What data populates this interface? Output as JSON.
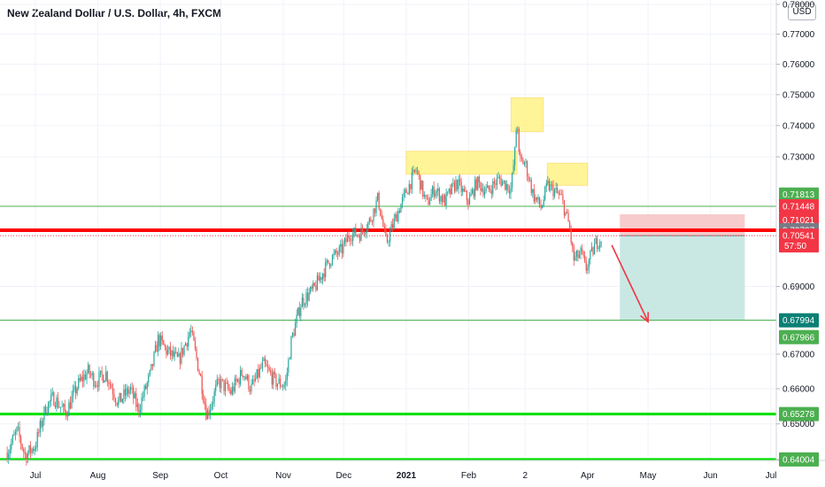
{
  "title": "New Zealand Dollar / U.S. Dollar, 4h, FXCM",
  "currency": "USD",
  "chart_data": {
    "type": "candlestick",
    "y_scale": "log",
    "ylim": [
      0.6375,
      0.7805
    ],
    "y_ticks": [
      "0.78000",
      "0.77000",
      "0.76000",
      "0.75000",
      "0.74000",
      "0.73000",
      "0.69000",
      "0.67000",
      "0.66000",
      "0.65000",
      "0.64000"
    ],
    "x_ticks": [
      {
        "label": "Jul",
        "date": "2020-07-01"
      },
      {
        "label": "Aug",
        "date": "2020-08-01"
      },
      {
        "label": "Sep",
        "date": "2020-09-01"
      },
      {
        "label": "Oct",
        "date": "2020-10-01"
      },
      {
        "label": "Nov",
        "date": "2020-11-01"
      },
      {
        "label": "Dec",
        "date": "2020-12-01"
      },
      {
        "label": "2021",
        "date": "2021-01-01",
        "bold": true
      },
      {
        "label": "Feb",
        "date": "2021-02-01"
      },
      {
        "label": "2",
        "date": "2021-03-01"
      },
      {
        "label": "Apr",
        "date": "2021-04-01"
      },
      {
        "label": "May",
        "date": "2021-05-01"
      },
      {
        "label": "Jun",
        "date": "2021-06-01"
      },
      {
        "label": "Jul",
        "date": "2021-07-01"
      }
    ],
    "price_path": [
      [
        "2020-06-17",
        0.642
      ],
      [
        "2020-06-22",
        0.648
      ],
      [
        "2020-06-26",
        0.641
      ],
      [
        "2020-07-01",
        0.644
      ],
      [
        "2020-07-06",
        0.6545
      ],
      [
        "2020-07-10",
        0.6575
      ],
      [
        "2020-07-16",
        0.653
      ],
      [
        "2020-07-22",
        0.661
      ],
      [
        "2020-07-27",
        0.665
      ],
      [
        "2020-07-31",
        0.662
      ],
      [
        "2020-08-05",
        0.6645
      ],
      [
        "2020-08-11",
        0.656
      ],
      [
        "2020-08-17",
        0.66
      ],
      [
        "2020-08-21",
        0.654
      ],
      [
        "2020-08-27",
        0.664
      ],
      [
        "2020-08-31",
        0.6745
      ],
      [
        "2020-09-04",
        0.671
      ],
      [
        "2020-09-10",
        0.668
      ],
      [
        "2020-09-16",
        0.677
      ],
      [
        "2020-09-21",
        0.663
      ],
      [
        "2020-09-24",
        0.6525
      ],
      [
        "2020-09-30",
        0.662
      ],
      [
        "2020-10-06",
        0.659
      ],
      [
        "2020-10-12",
        0.665
      ],
      [
        "2020-10-16",
        0.66
      ],
      [
        "2020-10-22",
        0.667
      ],
      [
        "2020-10-28",
        0.662
      ],
      [
        "2020-11-02",
        0.661
      ],
      [
        "2020-11-05",
        0.674
      ],
      [
        "2020-11-10",
        0.6855
      ],
      [
        "2020-11-16",
        0.689
      ],
      [
        "2020-11-24",
        0.698
      ],
      [
        "2020-11-30",
        0.701
      ],
      [
        "2020-12-04",
        0.706
      ],
      [
        "2020-12-09",
        0.706
      ],
      [
        "2020-12-14",
        0.71
      ],
      [
        "2020-12-18",
        0.717
      ],
      [
        "2020-12-22",
        0.703
      ],
      [
        "2020-12-28",
        0.713
      ],
      [
        "2021-01-01",
        0.719
      ],
      [
        "2021-01-06",
        0.726
      ],
      [
        "2021-01-11",
        0.715
      ],
      [
        "2021-01-15",
        0.72
      ],
      [
        "2021-01-20",
        0.716
      ],
      [
        "2021-01-26",
        0.722
      ],
      [
        "2021-02-01",
        0.716
      ],
      [
        "2021-02-05",
        0.722
      ],
      [
        "2021-02-10",
        0.719
      ],
      [
        "2021-02-16",
        0.723
      ],
      [
        "2021-02-22",
        0.72
      ],
      [
        "2021-02-24",
        0.732
      ],
      [
        "2021-02-25",
        0.744
      ],
      [
        "2021-02-26",
        0.729
      ],
      [
        "2021-03-01",
        0.728
      ],
      [
        "2021-03-05",
        0.718
      ],
      [
        "2021-03-09",
        0.714
      ],
      [
        "2021-03-12",
        0.721
      ],
      [
        "2021-03-16",
        0.719
      ],
      [
        "2021-03-19",
        0.717
      ],
      [
        "2021-03-23",
        0.708
      ],
      [
        "2021-03-25",
        0.698
      ],
      [
        "2021-03-29",
        0.7
      ],
      [
        "2021-03-31",
        0.695
      ],
      [
        "2021-04-05",
        0.703
      ],
      [
        "2021-04-08",
        0.705
      ]
    ],
    "support_resistance": [
      {
        "name": "resistance-red",
        "value": 0.70707,
        "color": "#ff0000"
      },
      {
        "name": "support-green-upper",
        "value": 0.67994,
        "color": "#4caf50"
      },
      {
        "name": "support-green-middle",
        "value": 0.65278,
        "color": "#00e000"
      },
      {
        "name": "support-green-lower",
        "value": 0.64004,
        "color": "#00e000"
      }
    ],
    "thin_lines": [
      {
        "value": 0.71448,
        "color": "#4caf50"
      },
      {
        "value": 0.70541,
        "color": "#f23645",
        "dotted": true
      }
    ],
    "highlight_boxes": [
      {
        "x1": "2021-01-01",
        "x2": "2021-02-25",
        "y1": 0.7245,
        "y2": 0.7318
      },
      {
        "x1": "2021-02-22",
        "x2": "2021-03-10",
        "y1": 0.738,
        "y2": 0.749
      },
      {
        "x1": "2021-03-12",
        "x2": "2021-04-01",
        "y1": 0.721,
        "y2": 0.728
      }
    ],
    "position": {
      "x1": "2021-04-17",
      "x2": "2021-06-18",
      "stop": 0.712,
      "entry": 0.70541,
      "target": 0.67994,
      "stop_color": "#f7cbcb",
      "target_color": "#c9e8e4"
    },
    "arrow": {
      "from_date": "2021-04-13",
      "from_price": 0.7025,
      "to_date": "2021-05-01",
      "to_price": 0.6795,
      "color": "#f23645"
    },
    "price_tags": [
      {
        "value": 0.71813,
        "label": "0.71813",
        "bg": "#4caf50",
        "fg": "#ffffff"
      },
      {
        "value": 0.71448,
        "label": "0.71448",
        "bg": "#f23645",
        "fg": "#ffffff"
      },
      {
        "value": 0.71021,
        "label": "0.71021",
        "bg": "#f23645",
        "fg": "#ffffff"
      },
      {
        "value": 0.70707,
        "label": "0.70707",
        "bg": "#787b86",
        "fg": "#ffffff"
      },
      {
        "value": 0.70541,
        "label": "0.70541",
        "sub": "57:50",
        "bg": "#f23645",
        "fg": "#ffffff"
      },
      {
        "value": 0.67994,
        "label": "0.67994",
        "bg": "#0b8075",
        "fg": "#ffffff"
      },
      {
        "value": 0.67966,
        "label": "0.67966",
        "bg": "#4caf50",
        "fg": "#ffffff",
        "offset": 18
      },
      {
        "value": 0.65278,
        "label": "0.65278",
        "bg": "#4caf50",
        "fg": "#ffffff"
      },
      {
        "value": 0.64004,
        "label": "0.64004",
        "bg": "#4caf50",
        "fg": "#ffffff"
      }
    ],
    "colors": {
      "up": "#26a69a",
      "down": "#ef5350"
    }
  }
}
